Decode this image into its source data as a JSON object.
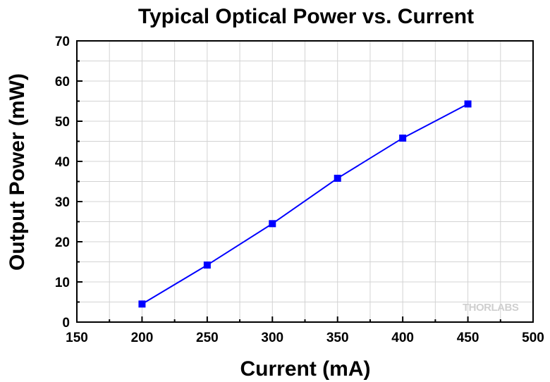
{
  "chart_data": {
    "type": "line",
    "title": "Typical Optical Power vs. Current",
    "xlabel": "Current (mA)",
    "ylabel": "Output Power (mW)",
    "xlim": [
      150,
      500
    ],
    "ylim": [
      0,
      70
    ],
    "xticks": [
      150,
      200,
      250,
      300,
      350,
      400,
      450,
      500
    ],
    "yticks": [
      0,
      10,
      20,
      30,
      40,
      50,
      60,
      70
    ],
    "grid": true,
    "series": [
      {
        "x": [
          200,
          250,
          300,
          350,
          400,
          450
        ],
        "y": [
          4.5,
          14.2,
          24.5,
          35.8,
          45.8,
          54.3
        ],
        "color": "#0000ff",
        "marker": "square"
      }
    ],
    "watermark": "THORLABS"
  }
}
